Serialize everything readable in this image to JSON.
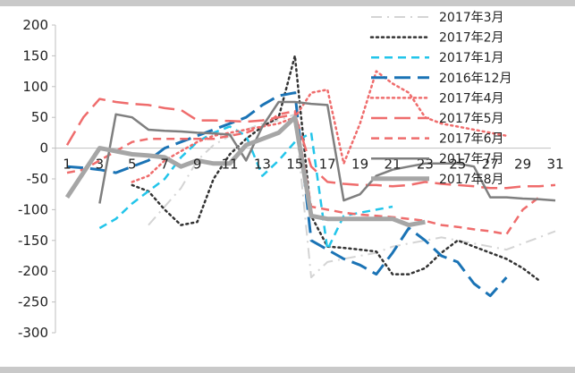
{
  "chart_data": {
    "type": "line",
    "title": "",
    "xlabel": "",
    "ylabel": "",
    "ylim": [
      -300,
      200
    ],
    "yticks": [
      200,
      150,
      100,
      50,
      0,
      -50,
      -100,
      -150,
      -200,
      -250,
      -300
    ],
    "xlim": [
      1,
      31
    ],
    "xticks": [
      1,
      3,
      5,
      7,
      9,
      11,
      13,
      15,
      17,
      19,
      21,
      23,
      25,
      27,
      29,
      31
    ],
    "grid": false,
    "legend_position": "top-right",
    "series": [
      {
        "name": "2017年3月",
        "color": "#d4d4d4",
        "dash": "dashdot",
        "width": 2,
        "points": [
          [
            6,
            -125
          ],
          [
            8,
            -65
          ],
          [
            9,
            -20
          ],
          [
            10,
            5
          ],
          [
            11,
            20
          ],
          [
            12,
            30
          ],
          [
            13,
            40
          ],
          [
            14,
            45
          ],
          [
            15,
            55
          ],
          [
            16,
            -210
          ],
          [
            17,
            -185
          ],
          [
            18,
            -180
          ],
          [
            19,
            -175
          ],
          [
            20,
            -170
          ],
          [
            21,
            -160
          ],
          [
            22,
            -155
          ],
          [
            23,
            -150
          ],
          [
            24,
            -145
          ],
          [
            25,
            -150
          ],
          [
            26,
            -155
          ],
          [
            27,
            -160
          ],
          [
            28,
            -165
          ],
          [
            29,
            -155
          ],
          [
            30,
            -145
          ],
          [
            31,
            -135
          ]
        ]
      },
      {
        "name": "2017年2月",
        "color": "#333333",
        "dash": "dot",
        "width": 2.5,
        "points": [
          [
            5,
            -60
          ],
          [
            6,
            -70
          ],
          [
            7,
            -100
          ],
          [
            8,
            -125
          ],
          [
            9,
            -120
          ],
          [
            10,
            -50
          ],
          [
            11,
            -10
          ],
          [
            12,
            15
          ],
          [
            13,
            35
          ],
          [
            14,
            50
          ],
          [
            15,
            150
          ],
          [
            16,
            -110
          ],
          [
            17,
            -160
          ],
          [
            18,
            -162
          ],
          [
            19,
            -165
          ],
          [
            20,
            -168
          ],
          [
            21,
            -205
          ],
          [
            22,
            -205
          ],
          [
            23,
            -195
          ],
          [
            24,
            -170
          ],
          [
            25,
            -150
          ],
          [
            26,
            -160
          ],
          [
            27,
            -170
          ],
          [
            28,
            -180
          ],
          [
            29,
            -195
          ],
          [
            30,
            -215
          ]
        ]
      },
      {
        "name": "2017年1月",
        "color": "#22c5ea",
        "dash": "dash",
        "width": 2.5,
        "points": [
          [
            3,
            -130
          ],
          [
            4,
            -115
          ],
          [
            5,
            -90
          ],
          [
            6,
            -70
          ],
          [
            7,
            -50
          ],
          [
            8,
            -15
          ],
          [
            9,
            10
          ],
          [
            10,
            25
          ],
          [
            11,
            35
          ],
          [
            12,
            20
          ],
          [
            13,
            -45
          ],
          [
            14,
            -20
          ],
          [
            15,
            10
          ],
          [
            16,
            25
          ],
          [
            17,
            -165
          ],
          [
            18,
            -110
          ],
          [
            19,
            -105
          ],
          [
            20,
            -100
          ],
          [
            21,
            -95
          ]
        ]
      },
      {
        "name": "2016年12月",
        "color": "#1a73b5",
        "dash": "longdash",
        "width": 3,
        "points": [
          [
            1,
            -30
          ],
          [
            2,
            -32
          ],
          [
            3,
            -35
          ],
          [
            4,
            -40
          ],
          [
            5,
            -30
          ],
          [
            6,
            -20
          ],
          [
            7,
            0
          ],
          [
            8,
            10
          ],
          [
            9,
            20
          ],
          [
            10,
            30
          ],
          [
            11,
            40
          ],
          [
            12,
            50
          ],
          [
            13,
            70
          ],
          [
            14,
            85
          ],
          [
            15,
            90
          ],
          [
            16,
            -150
          ],
          [
            17,
            -165
          ],
          [
            18,
            -180
          ],
          [
            19,
            -190
          ],
          [
            20,
            -205
          ],
          [
            21,
            -170
          ],
          [
            22,
            -130
          ],
          [
            23,
            -150
          ],
          [
            24,
            -175
          ],
          [
            25,
            -185
          ],
          [
            26,
            -220
          ],
          [
            27,
            -240
          ],
          [
            28,
            -210
          ]
        ]
      },
      {
        "name": "2017年4月",
        "color": "#ef6c6c",
        "dash": "dot",
        "width": 2.5,
        "points": [
          [
            5,
            -55
          ],
          [
            6,
            -45
          ],
          [
            7,
            -20
          ],
          [
            8,
            -5
          ],
          [
            9,
            10
          ],
          [
            10,
            20
          ],
          [
            11,
            25
          ],
          [
            12,
            30
          ],
          [
            13,
            35
          ],
          [
            14,
            40
          ],
          [
            15,
            50
          ],
          [
            16,
            90
          ],
          [
            17,
            95
          ],
          [
            18,
            -25
          ],
          [
            19,
            40
          ],
          [
            20,
            125
          ],
          [
            21,
            105
          ],
          [
            22,
            90
          ],
          [
            23,
            50
          ],
          [
            24,
            40
          ],
          [
            25,
            35
          ],
          [
            26,
            30
          ],
          [
            27,
            25
          ],
          [
            28,
            20
          ]
        ]
      },
      {
        "name": "2017年5月",
        "color": "#ef6c6c",
        "dash": "longdash",
        "width": 2.5,
        "points": [
          [
            1,
            5
          ],
          [
            2,
            50
          ],
          [
            3,
            80
          ],
          [
            4,
            75
          ],
          [
            5,
            72
          ],
          [
            6,
            70
          ],
          [
            7,
            65
          ],
          [
            8,
            62
          ],
          [
            9,
            45
          ],
          [
            10,
            45
          ],
          [
            11,
            44
          ],
          [
            12,
            43
          ],
          [
            13,
            45
          ],
          [
            14,
            50
          ],
          [
            15,
            55
          ],
          [
            16,
            -30
          ],
          [
            17,
            -55
          ],
          [
            18,
            -58
          ],
          [
            19,
            -60
          ],
          [
            20,
            -60
          ],
          [
            21,
            -62
          ],
          [
            22,
            -60
          ],
          [
            23,
            -55
          ],
          [
            24,
            -58
          ],
          [
            25,
            -60
          ],
          [
            26,
            -62
          ],
          [
            27,
            -65
          ],
          [
            28,
            -65
          ],
          [
            29,
            -62
          ],
          [
            30,
            -62
          ],
          [
            31,
            -60
          ]
        ]
      },
      {
        "name": "2017年6月",
        "color": "#ef6c6c",
        "dash": "dash",
        "width": 2.5,
        "points": [
          [
            1,
            -40
          ],
          [
            2,
            -35
          ],
          [
            3,
            -20
          ],
          [
            4,
            -5
          ],
          [
            5,
            10
          ],
          [
            6,
            15
          ],
          [
            7,
            15
          ],
          [
            8,
            15
          ],
          [
            9,
            15
          ],
          [
            10,
            15
          ],
          [
            11,
            20
          ],
          [
            12,
            25
          ],
          [
            13,
            35
          ],
          [
            14,
            55
          ],
          [
            15,
            60
          ],
          [
            16,
            -95
          ],
          [
            17,
            -100
          ],
          [
            18,
            -105
          ],
          [
            19,
            -108
          ],
          [
            20,
            -110
          ],
          [
            21,
            -112
          ],
          [
            22,
            -115
          ],
          [
            23,
            -118
          ],
          [
            24,
            -125
          ],
          [
            25,
            -128
          ],
          [
            26,
            -132
          ],
          [
            27,
            -135
          ],
          [
            28,
            -140
          ],
          [
            29,
            -100
          ],
          [
            30,
            -80
          ]
        ]
      },
      {
        "name": "2017年7月",
        "color": "#7f7f7f",
        "dash": "solid",
        "width": 2.5,
        "points": [
          [
            3,
            -90
          ],
          [
            4,
            55
          ],
          [
            5,
            50
          ],
          [
            6,
            30
          ],
          [
            7,
            28
          ],
          [
            8,
            27
          ],
          [
            9,
            25
          ],
          [
            10,
            24
          ],
          [
            11,
            22
          ],
          [
            12,
            -20
          ],
          [
            13,
            35
          ],
          [
            14,
            75
          ],
          [
            15,
            75
          ],
          [
            16,
            72
          ],
          [
            17,
            70
          ],
          [
            18,
            -85
          ],
          [
            19,
            -75
          ],
          [
            20,
            -45
          ],
          [
            21,
            -35
          ],
          [
            22,
            -30
          ],
          [
            23,
            -25
          ],
          [
            24,
            -25
          ],
          [
            25,
            -25
          ],
          [
            26,
            -30
          ],
          [
            27,
            -80
          ],
          [
            28,
            -80
          ],
          [
            29,
            -82
          ],
          [
            30,
            -83
          ],
          [
            31,
            -85
          ]
        ]
      },
      {
        "name": "2017年8月",
        "color": "#a6a6a6",
        "dash": "solid",
        "width": 5,
        "points": [
          [
            1,
            -80
          ],
          [
            2,
            -40
          ],
          [
            3,
            0
          ],
          [
            4,
            -5
          ],
          [
            5,
            -10
          ],
          [
            6,
            -12
          ],
          [
            7,
            -15
          ],
          [
            8,
            -30
          ],
          [
            9,
            -20
          ],
          [
            10,
            -25
          ],
          [
            11,
            -25
          ],
          [
            12,
            5
          ],
          [
            13,
            15
          ],
          [
            14,
            25
          ],
          [
            15,
            50
          ],
          [
            16,
            -110
          ],
          [
            17,
            -115
          ],
          [
            18,
            -115
          ],
          [
            19,
            -115
          ],
          [
            20,
            -115
          ],
          [
            21,
            -115
          ],
          [
            22,
            -125
          ],
          [
            23,
            -120
          ]
        ]
      }
    ]
  }
}
